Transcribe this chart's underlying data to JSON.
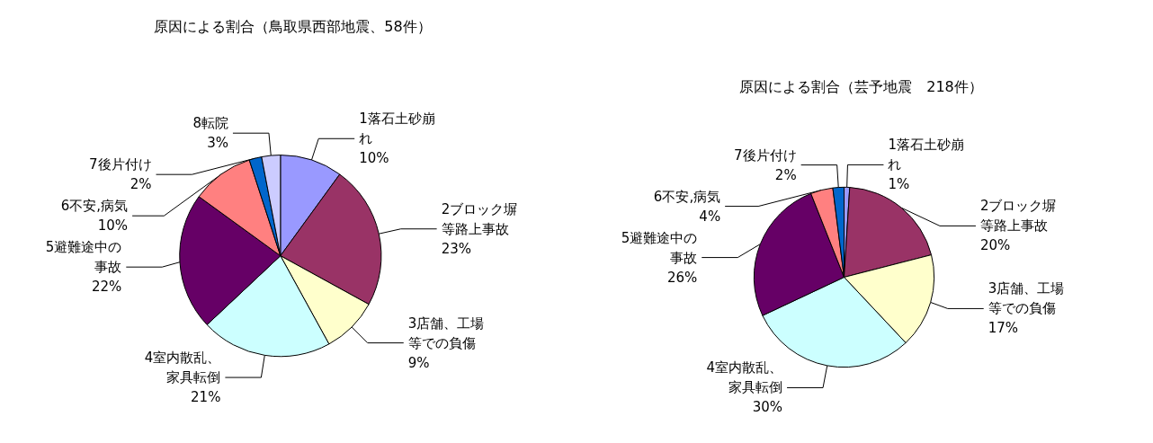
{
  "chart_data": [
    {
      "type": "pie",
      "title": "原因による割合（鳥取県西部地震、58件）",
      "categories": [
        "1落石土砂崩れ",
        "2ブロック塀等路上事故",
        "3店舗、工場等での負傷",
        "4室内散乱、家具転倒",
        "5避難途中の事故",
        "6不安,病気",
        "7後片付け",
        "8転院"
      ],
      "values": [
        10,
        23,
        9,
        21,
        22,
        10,
        2,
        3
      ],
      "value_labels": [
        "10%",
        "23%",
        "9%",
        "21%",
        "22%",
        "10%",
        "2%",
        "3%"
      ],
      "colors": [
        "#9999ff",
        "#993366",
        "#ffffcc",
        "#ccffff",
        "#660066",
        "#ff8080",
        "#0066cc",
        "#ccccff"
      ],
      "legend": false
    },
    {
      "type": "pie",
      "title": "原因による割合（芸予地震　218件）",
      "categories": [
        "1落石土砂崩れ",
        "2ブロック塀等路上事故",
        "3店舗、工場等での負傷",
        "4室内散乱、家具転倒",
        "5避難途中の事故",
        "6不安,病気",
        "7後片付け"
      ],
      "values": [
        1,
        20,
        17,
        30,
        26,
        4,
        2
      ],
      "value_labels": [
        "1%",
        "20%",
        "17%",
        "30%",
        "26%",
        "4%",
        "2%"
      ],
      "colors": [
        "#9999ff",
        "#993366",
        "#ffffcc",
        "#ccffff",
        "#660066",
        "#ff8080",
        "#0066cc"
      ],
      "legend": false
    }
  ]
}
